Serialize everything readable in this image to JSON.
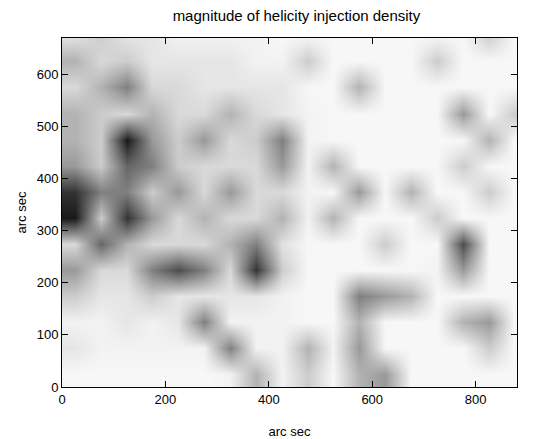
{
  "chart_data": {
    "type": "heatmap",
    "title": "magnitude of helicity injection density",
    "x_label": "arc sec",
    "y_label": "arc sec",
    "xlim": [
      0,
      880
    ],
    "ylim": [
      0,
      670
    ],
    "xticks": [
      0,
      200,
      400,
      600,
      800
    ],
    "yticks": [
      0,
      100,
      200,
      300,
      400,
      500,
      600
    ],
    "zlim": [
      0,
      1
    ],
    "x": [
      25,
      75,
      125,
      175,
      225,
      275,
      325,
      375,
      425,
      475,
      525,
      575,
      625,
      675,
      725,
      775,
      825,
      875
    ],
    "y": [
      25,
      75,
      125,
      175,
      225,
      275,
      325,
      375,
      425,
      475,
      525,
      575,
      625,
      675
    ],
    "z": [
      [
        0.03,
        0.03,
        0.03,
        0.03,
        0.03,
        0.03,
        0.05,
        0.3,
        0.05,
        0.2,
        0.03,
        0.3,
        0.4,
        0.03,
        0.03,
        0.03,
        0.03,
        0.03
      ],
      [
        0.1,
        0.05,
        0.05,
        0.05,
        0.05,
        0.05,
        0.5,
        0.05,
        0.05,
        0.3,
        0.05,
        0.4,
        0.03,
        0.03,
        0.03,
        0.03,
        0.2,
        0.03
      ],
      [
        0.05,
        0.05,
        0.1,
        0.05,
        0.1,
        0.5,
        0.05,
        0.05,
        0.05,
        0.03,
        0.03,
        0.3,
        0.03,
        0.03,
        0.03,
        0.3,
        0.4,
        0.03
      ],
      [
        0.2,
        0.1,
        0.1,
        0.2,
        0.1,
        0.1,
        0.1,
        0.1,
        0.05,
        0.03,
        0.03,
        0.5,
        0.4,
        0.3,
        0.03,
        0.03,
        0.03,
        0.03
      ],
      [
        0.4,
        0.15,
        0.15,
        0.5,
        0.7,
        0.5,
        0.15,
        0.8,
        0.2,
        0.03,
        0.03,
        0.03,
        0.03,
        0.03,
        0.05,
        0.4,
        0.03,
        0.03
      ],
      [
        0.15,
        0.6,
        0.3,
        0.15,
        0.15,
        0.15,
        0.3,
        0.5,
        0.12,
        0.03,
        0.03,
        0.03,
        0.2,
        0.03,
        0.03,
        0.7,
        0.03,
        0.03
      ],
      [
        0.9,
        0.2,
        0.8,
        0.4,
        0.15,
        0.3,
        0.15,
        0.15,
        0.3,
        0.05,
        0.3,
        0.03,
        0.03,
        0.03,
        0.2,
        0.03,
        0.03,
        0.03
      ],
      [
        0.8,
        0.5,
        0.5,
        0.2,
        0.4,
        0.15,
        0.4,
        0.15,
        0.15,
        0.05,
        0.03,
        0.4,
        0.03,
        0.3,
        0.03,
        0.03,
        0.2,
        0.03
      ],
      [
        0.4,
        0.2,
        0.6,
        0.5,
        0.2,
        0.15,
        0.15,
        0.15,
        0.4,
        0.05,
        0.3,
        0.03,
        0.03,
        0.03,
        0.03,
        0.2,
        0.03,
        0.03
      ],
      [
        0.3,
        0.2,
        0.9,
        0.4,
        0.2,
        0.4,
        0.15,
        0.2,
        0.5,
        0.05,
        0.03,
        0.03,
        0.03,
        0.03,
        0.03,
        0.03,
        0.3,
        0.03
      ],
      [
        0.3,
        0.2,
        0.15,
        0.3,
        0.15,
        0.15,
        0.3,
        0.15,
        0.1,
        0.05,
        0.03,
        0.03,
        0.03,
        0.03,
        0.03,
        0.4,
        0.03,
        0.2
      ],
      [
        0.15,
        0.3,
        0.5,
        0.15,
        0.15,
        0.1,
        0.1,
        0.1,
        0.1,
        0.03,
        0.03,
        0.3,
        0.03,
        0.03,
        0.03,
        0.03,
        0.03,
        0.03
      ],
      [
        0.3,
        0.15,
        0.2,
        0.1,
        0.1,
        0.1,
        0.1,
        0.05,
        0.05,
        0.2,
        0.03,
        0.03,
        0.03,
        0.03,
        0.2,
        0.03,
        0.03,
        0.03
      ],
      [
        0.1,
        0.2,
        0.1,
        0.1,
        0.05,
        0.05,
        0.05,
        0.05,
        0.03,
        0.03,
        0.03,
        0.03,
        0.03,
        0.03,
        0.03,
        0.03,
        0.2,
        0.03
      ]
    ]
  }
}
